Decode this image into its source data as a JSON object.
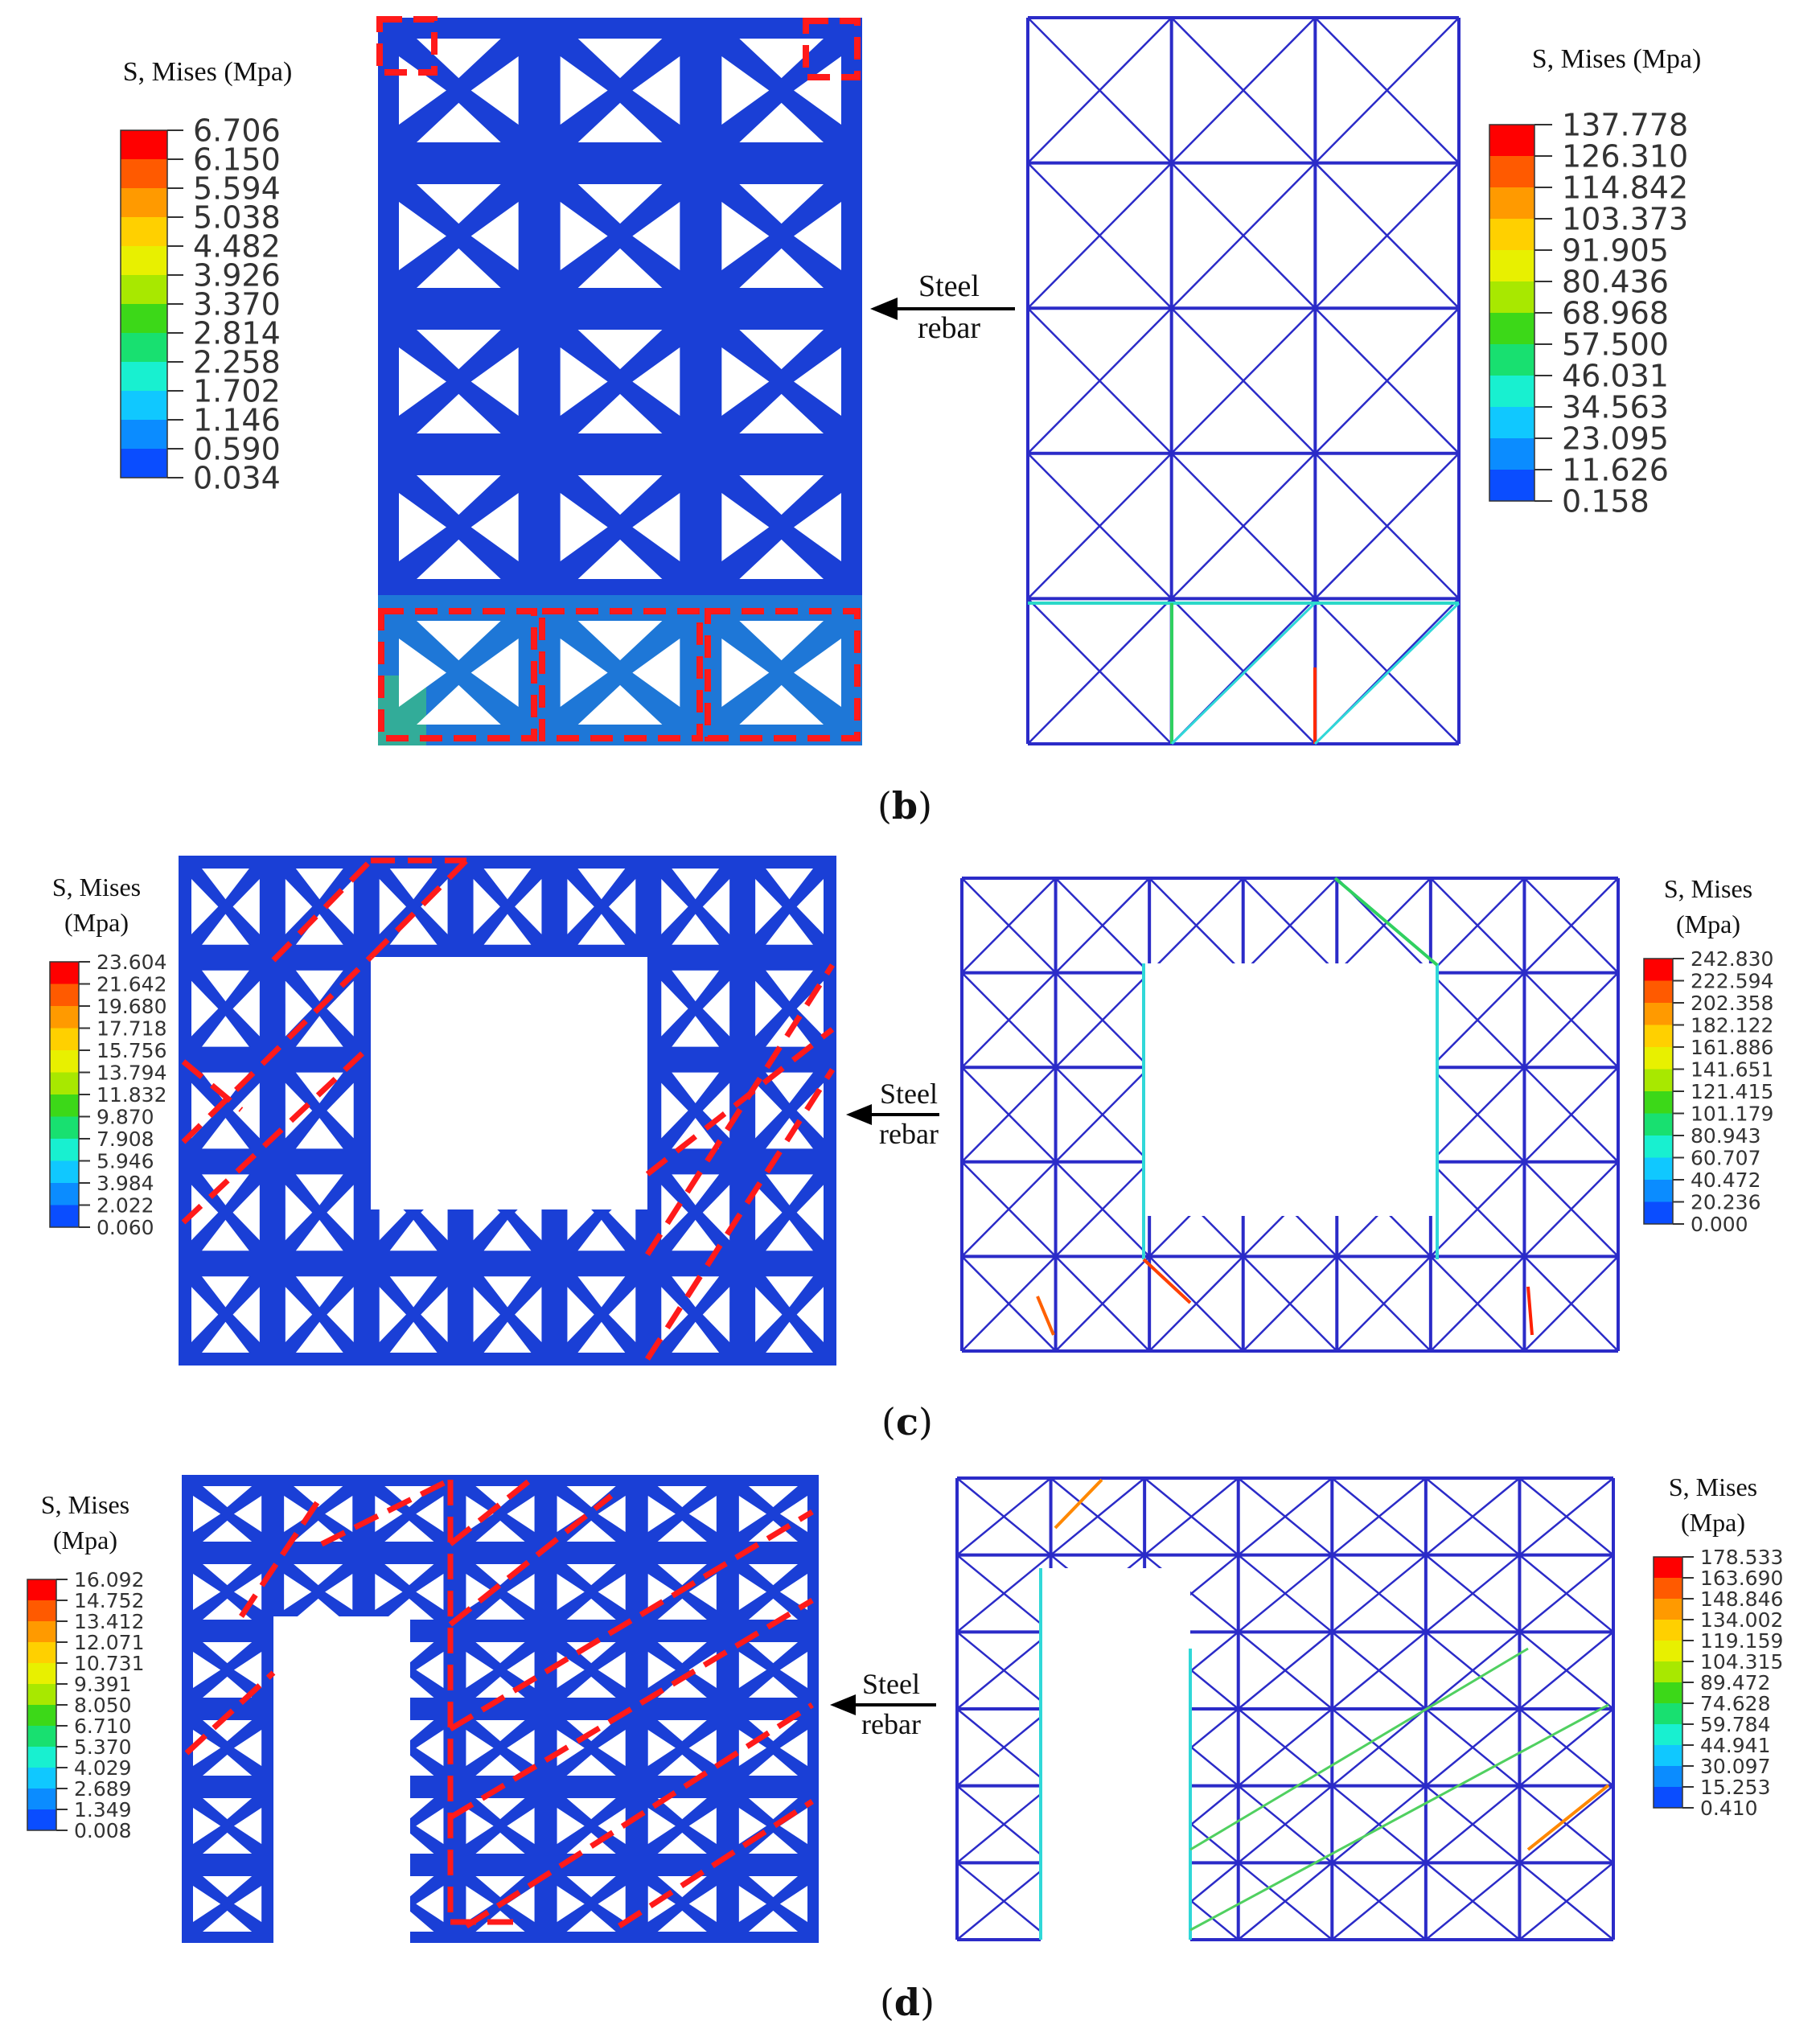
{
  "palette": [
    "#0000ff",
    "#0a4dff",
    "#0b8cff",
    "#10c8ff",
    "#18f0e0",
    "#26e8a8",
    "#2ecf40",
    "#6fe000",
    "#bfe800",
    "#f5f000",
    "#ffc400",
    "#ff8400",
    "#ff4000",
    "#ff0000"
  ],
  "colors": {
    "grid_blue": "#2b2bc8",
    "solid_blue": "#1a3fd6",
    "dashed_red": "#ff1a1a",
    "line_cyan": "#30d8d8",
    "line_green": "#50d060"
  },
  "panels": [
    {
      "label_letter": "b",
      "left_legend": {
        "title_line1": "S, Mises (Mpa)",
        "title_line2": "",
        "values": [
          "6.706",
          "6.150",
          "5.594",
          "5.038",
          "4.482",
          "3.926",
          "3.370",
          "2.814",
          "2.258",
          "1.702",
          "1.146",
          "0.590",
          "0.034"
        ]
      },
      "right_legend": {
        "title_line1": "S, Mises (Mpa)",
        "title_line2": "",
        "values": [
          "137.778",
          "126.310",
          "114.842",
          "103.373",
          "91.905",
          "80.436",
          "68.968",
          "57.500",
          "46.031",
          "34.563",
          "23.095",
          "11.626",
          "0.158"
        ]
      },
      "annotation": {
        "line1": "Steel",
        "line2": "rebar"
      }
    },
    {
      "label_letter": "c",
      "left_legend": {
        "title_line1": "S, Mises",
        "title_line2": "(Mpa)",
        "values": [
          "23.604",
          "21.642",
          "19.680",
          "17.718",
          "15.756",
          "13.794",
          "11.832",
          "9.870",
          "7.908",
          "5.946",
          "3.984",
          "2.022",
          "0.060"
        ]
      },
      "right_legend": {
        "title_line1": "S, Mises",
        "title_line2": "(Mpa)",
        "values": [
          "242.830",
          "222.594",
          "202.358",
          "182.122",
          "161.886",
          "141.651",
          "121.415",
          "101.179",
          "80.943",
          "60.707",
          "40.472",
          "20.236",
          "0.000"
        ]
      },
      "annotation": {
        "line1": "Steel",
        "line2": "rebar"
      }
    },
    {
      "label_letter": "d",
      "left_legend": {
        "title_line1": "S, Mises",
        "title_line2": "(Mpa)",
        "values": [
          "16.092",
          "14.752",
          "13.412",
          "12.071",
          "10.731",
          "9.391",
          "8.050",
          "6.710",
          "5.370",
          "4.029",
          "2.689",
          "1.349",
          "0.008"
        ]
      },
      "right_legend": {
        "title_line1": "S, Mises",
        "title_line2": "(Mpa)",
        "values": [
          "178.533",
          "163.690",
          "148.846",
          "134.002",
          "119.159",
          "104.315",
          "89.472",
          "74.628",
          "59.784",
          "44.941",
          "30.097",
          "15.253",
          "0.410"
        ]
      },
      "annotation": {
        "line1": "Steel",
        "line2": "rebar"
      }
    }
  ]
}
